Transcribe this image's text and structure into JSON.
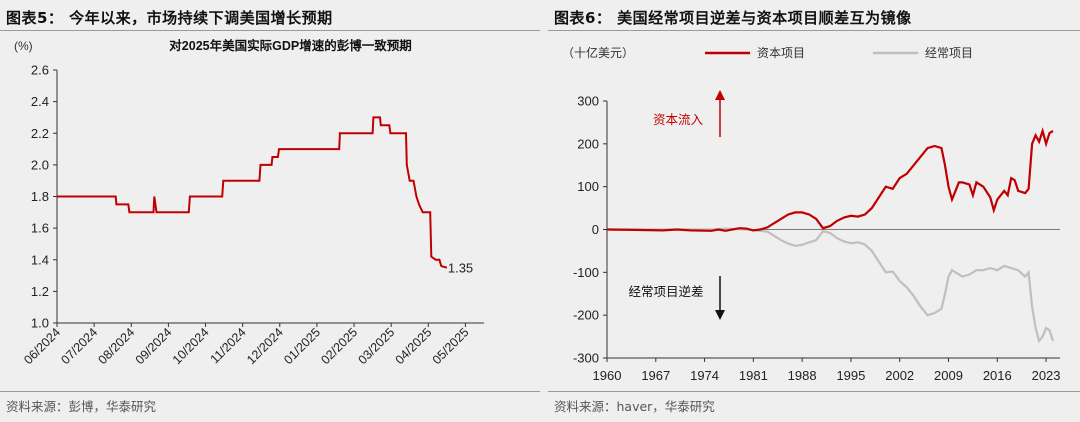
{
  "left": {
    "panel_title": "图表5： 今年以来，市场持续下调美国增长预期",
    "source": "资料来源：彭博，华泰研究",
    "chart_data": {
      "type": "line",
      "title": "对2025年美国实际GDP增速的彭博一致预期",
      "ylabel": "(%)",
      "ylim": [
        1.0,
        2.6
      ],
      "yticks": [
        1.0,
        1.2,
        1.4,
        1.6,
        1.8,
        2.0,
        2.2,
        2.4,
        2.6
      ],
      "xlabels": [
        "06/2024",
        "07/2024",
        "08/2024",
        "09/2024",
        "10/2024",
        "11/2024",
        "12/2024",
        "01/2025",
        "02/2025",
        "03/2025",
        "04/2025",
        "05/2025"
      ],
      "annotation": "1.35",
      "color": "#c00000",
      "series": [
        {
          "values": [
            [
              0,
              1.8
            ],
            [
              0.8,
              1.8
            ],
            [
              1.58,
              1.8
            ],
            [
              1.6,
              1.75
            ],
            [
              1.92,
              1.75
            ],
            [
              1.95,
              1.7
            ],
            [
              2.6,
              1.7
            ],
            [
              2.62,
              1.8
            ],
            [
              2.68,
              1.7
            ],
            [
              3.55,
              1.7
            ],
            [
              3.58,
              1.8
            ],
            [
              4.45,
              1.8
            ],
            [
              4.48,
              1.9
            ],
            [
              5.45,
              1.9
            ],
            [
              5.48,
              2.0
            ],
            [
              5.78,
              2.0
            ],
            [
              5.8,
              2.05
            ],
            [
              5.95,
              2.05
            ],
            [
              5.98,
              2.1
            ],
            [
              7.6,
              2.1
            ],
            [
              7.62,
              2.2
            ],
            [
              8.5,
              2.2
            ],
            [
              8.52,
              2.3
            ],
            [
              8.7,
              2.3
            ],
            [
              8.72,
              2.25
            ],
            [
              8.95,
              2.25
            ],
            [
              8.98,
              2.2
            ],
            [
              9.4,
              2.2
            ],
            [
              9.42,
              2.0
            ],
            [
              9.5,
              1.9
            ],
            [
              9.6,
              1.9
            ],
            [
              9.68,
              1.8
            ],
            [
              9.75,
              1.75
            ],
            [
              9.85,
              1.7
            ],
            [
              10.05,
              1.7
            ],
            [
              10.08,
              1.42
            ],
            [
              10.2,
              1.4
            ],
            [
              10.3,
              1.4
            ],
            [
              10.35,
              1.36
            ],
            [
              10.5,
              1.35
            ]
          ]
        }
      ]
    }
  },
  "right": {
    "panel_title": "图表6： 美国经常项目逆差与资本项目顺差互为镜像",
    "source": "资料来源：haver，华泰研究",
    "chart_data": {
      "type": "line",
      "ylabel": "（十亿美元）",
      "ylim": [
        -300,
        300
      ],
      "yticks": [
        -300,
        -200,
        -100,
        0,
        100,
        200,
        300
      ],
      "xlim": [
        1960,
        2025
      ],
      "xticks": [
        1960,
        1967,
        1974,
        1981,
        1988,
        1995,
        2002,
        2009,
        2016,
        2023
      ],
      "legend_position": "top",
      "annotations": {
        "capital_inflow": "资本流入",
        "current_deficit": "经常项目逆差"
      },
      "series": [
        {
          "name": "资本项目",
          "color": "#c00000",
          "values": [
            [
              1960,
              0
            ],
            [
              1964,
              -1
            ],
            [
              1968,
              -2
            ],
            [
              1970,
              0
            ],
            [
              1972,
              -2
            ],
            [
              1975,
              -3
            ],
            [
              1976,
              0
            ],
            [
              1977,
              -3
            ],
            [
              1978,
              0
            ],
            [
              1979,
              3
            ],
            [
              1980,
              2
            ],
            [
              1981,
              -2
            ],
            [
              1982,
              0
            ],
            [
              1983,
              5
            ],
            [
              1984,
              15
            ],
            [
              1985,
              25
            ],
            [
              1986,
              35
            ],
            [
              1987,
              40
            ],
            [
              1988,
              40
            ],
            [
              1989,
              35
            ],
            [
              1990,
              25
            ],
            [
              1991,
              3
            ],
            [
              1992,
              8
            ],
            [
              1993,
              20
            ],
            [
              1994,
              28
            ],
            [
              1995,
              32
            ],
            [
              1996,
              30
            ],
            [
              1997,
              35
            ],
            [
              1998,
              50
            ],
            [
              1999,
              75
            ],
            [
              2000,
              100
            ],
            [
              2001,
              95
            ],
            [
              2002,
              120
            ],
            [
              2003,
              130
            ],
            [
              2004,
              150
            ],
            [
              2005,
              170
            ],
            [
              2006,
              190
            ],
            [
              2007,
              195
            ],
            [
              2008,
              190
            ],
            [
              2008.5,
              150
            ],
            [
              2009,
              100
            ],
            [
              2009.5,
              70
            ],
            [
              2010,
              90
            ],
            [
              2010.5,
              110
            ],
            [
              2011,
              110
            ],
            [
              2012,
              105
            ],
            [
              2012.5,
              80
            ],
            [
              2013,
              110
            ],
            [
              2014,
              100
            ],
            [
              2015,
              75
            ],
            [
              2015.5,
              45
            ],
            [
              2016,
              70
            ],
            [
              2017,
              90
            ],
            [
              2017.5,
              80
            ],
            [
              2018,
              120
            ],
            [
              2018.5,
              115
            ],
            [
              2019,
              90
            ],
            [
              2020,
              85
            ],
            [
              2020.5,
              95
            ],
            [
              2021,
              200
            ],
            [
              2021.5,
              220
            ],
            [
              2022,
              205
            ],
            [
              2022.5,
              230
            ],
            [
              2023,
              200
            ],
            [
              2023.5,
              225
            ],
            [
              2024,
              230
            ]
          ]
        },
        {
          "name": "经常项目",
          "color": "#bfbfbf",
          "values": [
            [
              1960,
              0
            ],
            [
              1975,
              0
            ],
            [
              1977,
              2
            ],
            [
              1980,
              0
            ],
            [
              1983,
              -5
            ],
            [
              1984,
              -15
            ],
            [
              1985,
              -25
            ],
            [
              1986,
              -33
            ],
            [
              1987,
              -38
            ],
            [
              1988,
              -36
            ],
            [
              1989,
              -30
            ],
            [
              1990,
              -25
            ],
            [
              1991,
              -4
            ],
            [
              1992,
              -8
            ],
            [
              1993,
              -20
            ],
            [
              1994,
              -28
            ],
            [
              1995,
              -32
            ],
            [
              1996,
              -30
            ],
            [
              1997,
              -35
            ],
            [
              1998,
              -50
            ],
            [
              1999,
              -75
            ],
            [
              2000,
              -100
            ],
            [
              2001,
              -98
            ],
            [
              2002,
              -120
            ],
            [
              2003,
              -135
            ],
            [
              2004,
              -155
            ],
            [
              2005,
              -180
            ],
            [
              2006,
              -200
            ],
            [
              2007,
              -195
            ],
            [
              2008,
              -185
            ],
            [
              2008.5,
              -150
            ],
            [
              2009,
              -110
            ],
            [
              2009.5,
              -95
            ],
            [
              2010,
              -100
            ],
            [
              2011,
              -110
            ],
            [
              2012,
              -105
            ],
            [
              2013,
              -95
            ],
            [
              2014,
              -95
            ],
            [
              2015,
              -90
            ],
            [
              2016,
              -95
            ],
            [
              2017,
              -85
            ],
            [
              2018,
              -90
            ],
            [
              2019,
              -95
            ],
            [
              2020,
              -110
            ],
            [
              2020.5,
              -100
            ],
            [
              2021,
              -180
            ],
            [
              2021.5,
              -230
            ],
            [
              2022,
              -260
            ],
            [
              2022.5,
              -250
            ],
            [
              2023,
              -230
            ],
            [
              2023.5,
              -235
            ],
            [
              2024,
              -260
            ]
          ]
        }
      ]
    }
  }
}
